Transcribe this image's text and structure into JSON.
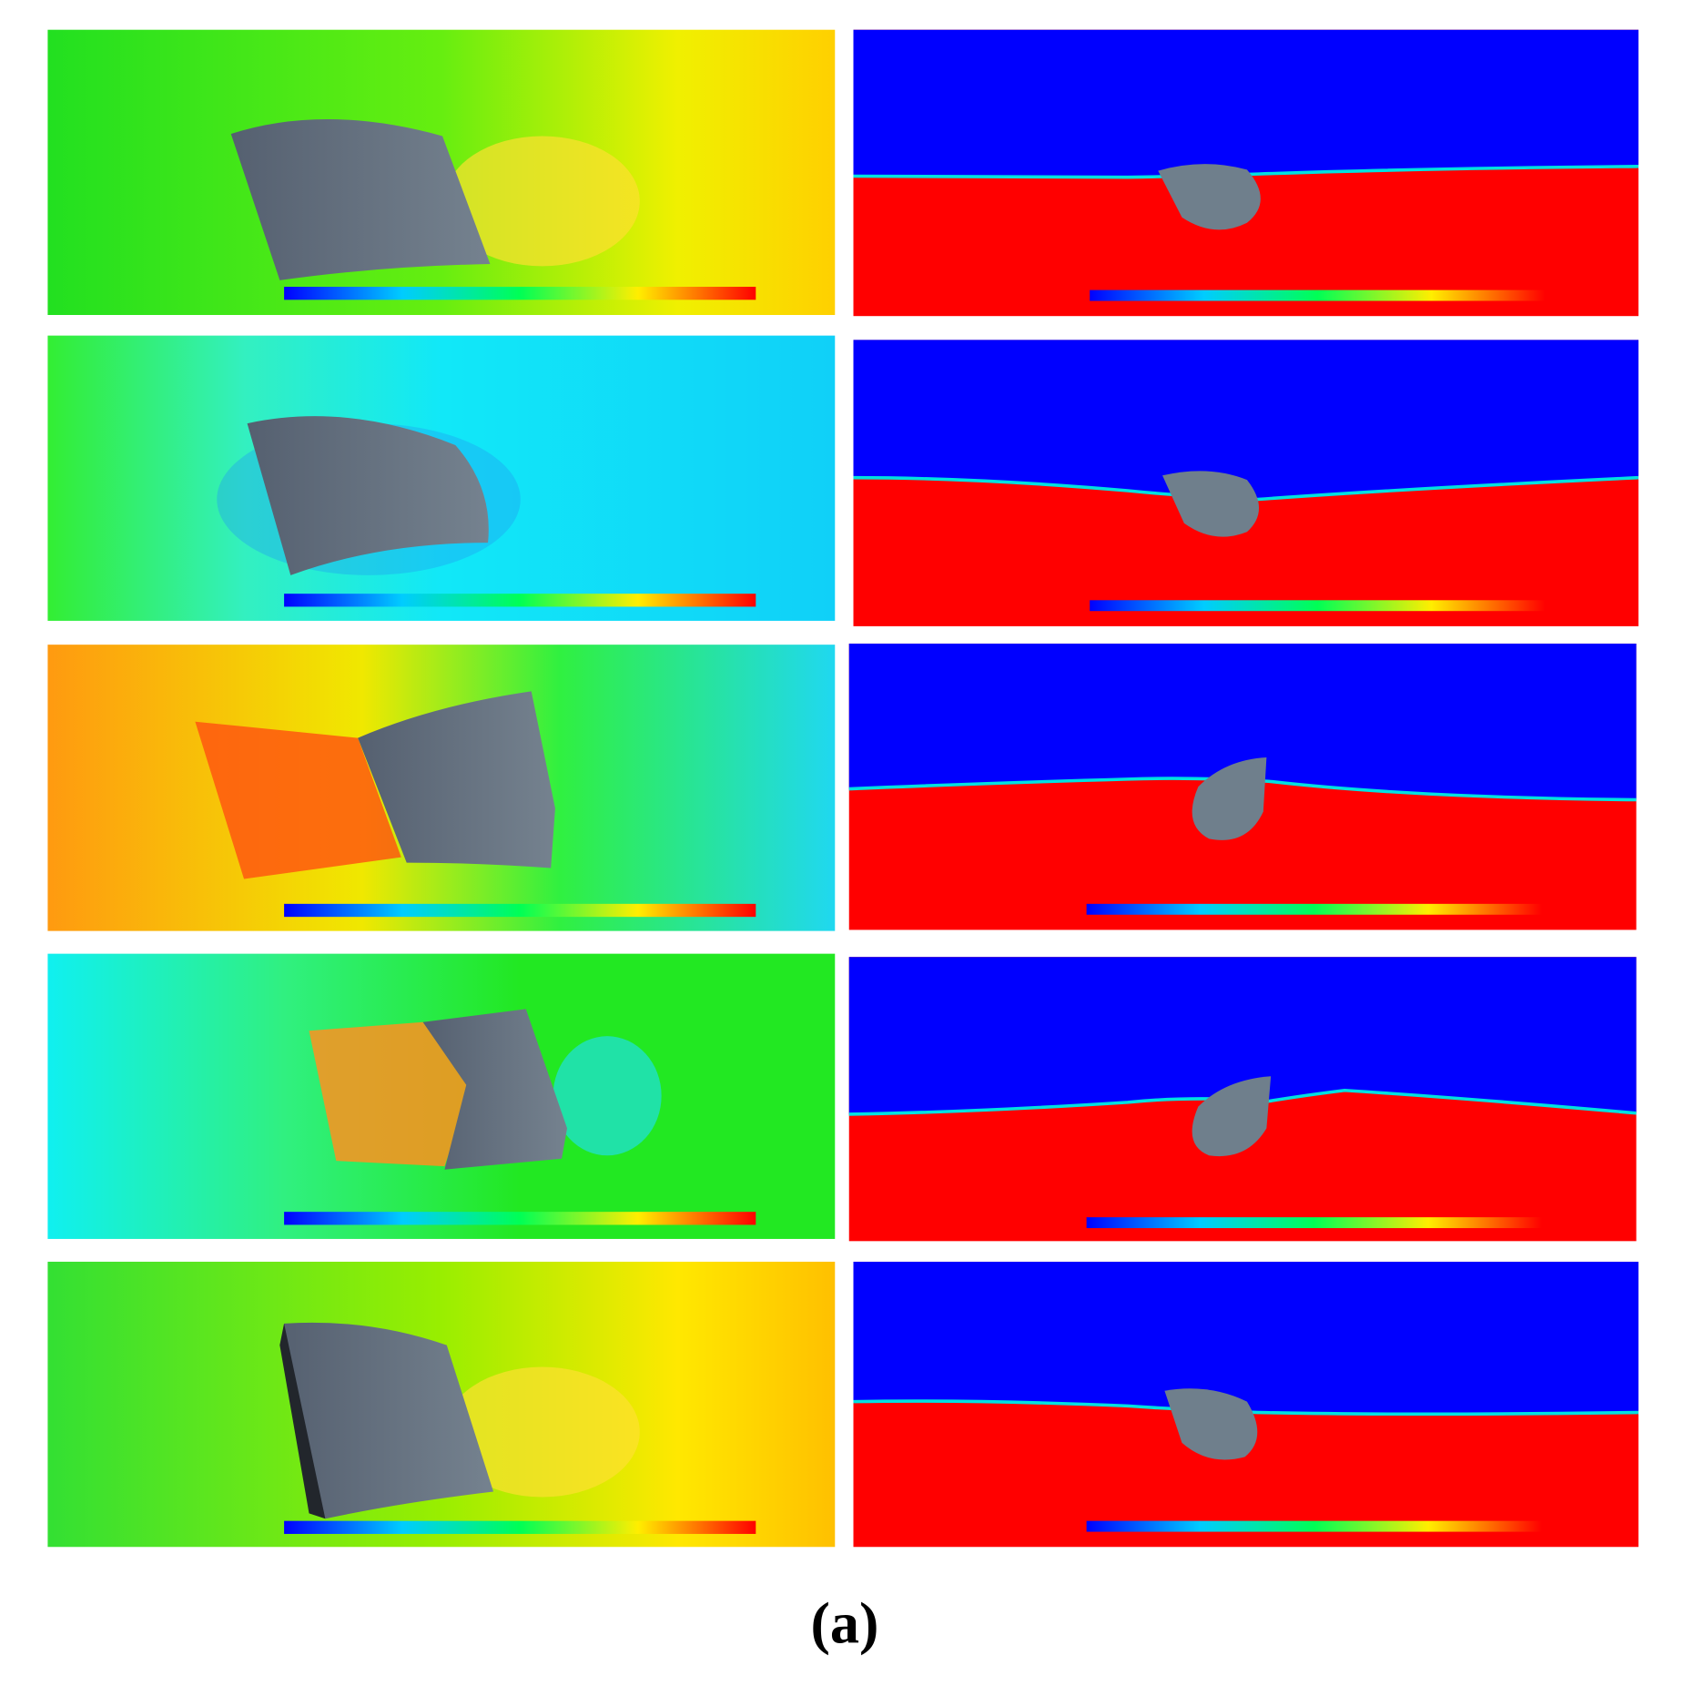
{
  "caption": "(a)"
}
